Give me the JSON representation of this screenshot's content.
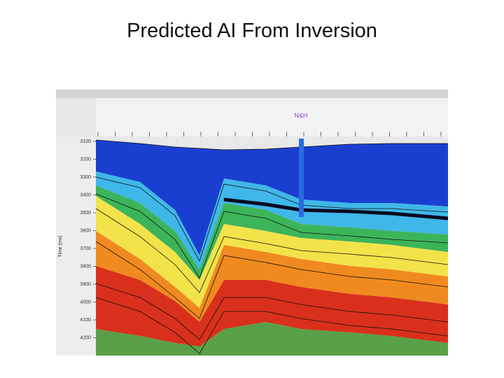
{
  "header": {
    "title": "Predicted AI From Inversion"
  },
  "viewer": {
    "well_label": "N&H",
    "axis_label": "Time (ms)",
    "time_ticks": [
      "3100",
      "3200",
      "3300",
      "3400",
      "3500",
      "3600",
      "3700",
      "3800",
      "3900",
      "4000",
      "4100",
      "4200"
    ]
  }
}
